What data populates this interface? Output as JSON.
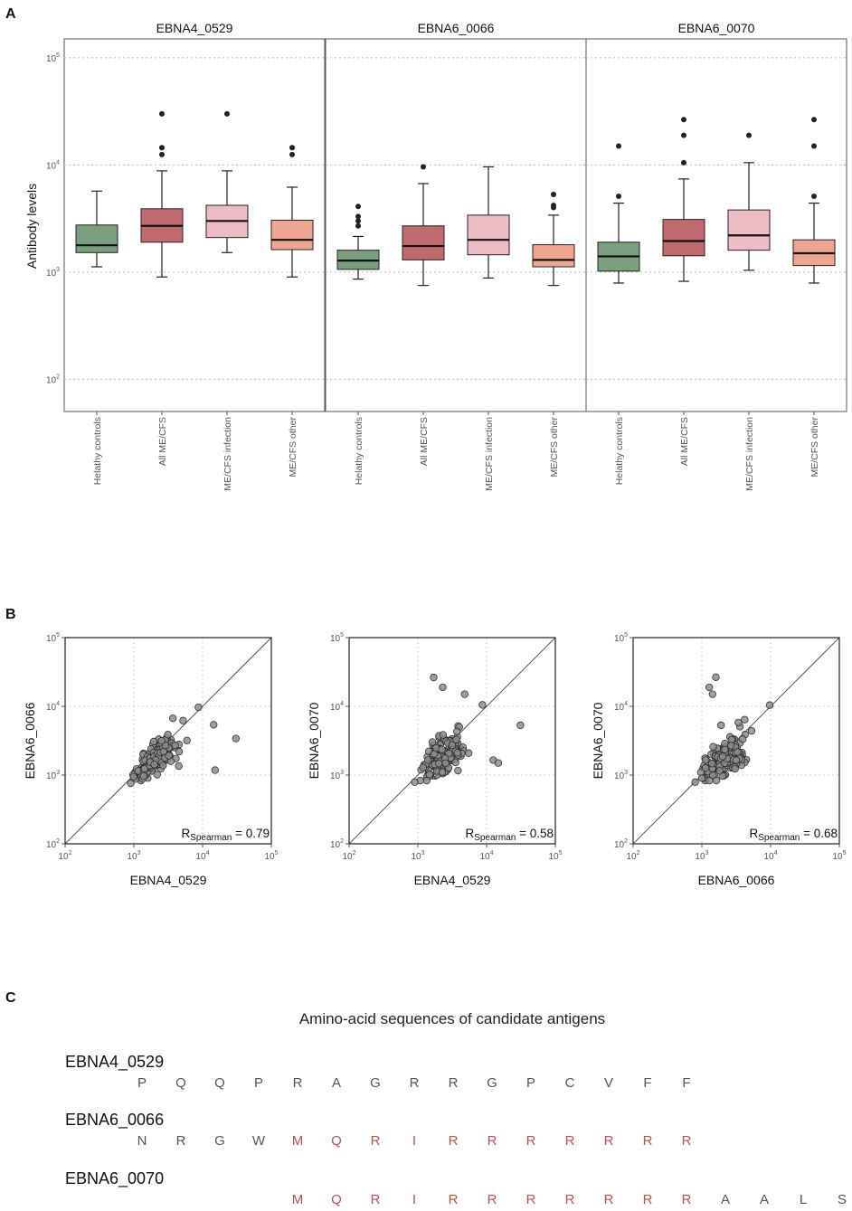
{
  "panels": {
    "a": "A",
    "b": "B",
    "c": "C"
  },
  "chart_data": [
    {
      "type": "boxplot",
      "id": "A",
      "ylabel": "Antibody levels",
      "yscale": "log10",
      "ylim": [
        50,
        150000
      ],
      "yticks": [
        {
          "value": 100,
          "base": "10",
          "exp": "2"
        },
        {
          "value": 1000,
          "base": "10",
          "exp": "3"
        },
        {
          "value": 10000,
          "base": "10",
          "exp": "4"
        },
        {
          "value": 100000,
          "base": "10",
          "exp": "5"
        }
      ],
      "groups": [
        "Helathy controls",
        "All ME/CFS",
        "ME/CFS infection",
        "ME/CFS other"
      ],
      "colors": [
        "#7a9e7e",
        "#c0696f",
        "#ebbcc4",
        "#eea692"
      ],
      "facets": [
        {
          "title": "EBNA4_0529",
          "boxes": [
            {
              "min": 1120,
              "q1": 1520,
              "median": 1780,
              "q3": 2750,
              "max": 5700,
              "outliers": []
            },
            {
              "min": 900,
              "q1": 1900,
              "median": 2700,
              "q3": 3900,
              "max": 8800,
              "outliers": [
                12500,
                14500,
                30000
              ]
            },
            {
              "min": 1520,
              "q1": 2100,
              "median": 3000,
              "q3": 4200,
              "max": 8800,
              "outliers": [
                30000
              ]
            },
            {
              "min": 900,
              "q1": 1620,
              "median": 2000,
              "q3": 3050,
              "max": 6200,
              "outliers": [
                12500,
                14500
              ]
            }
          ]
        },
        {
          "title": "EBNA6_0066",
          "boxes": [
            {
              "min": 860,
              "q1": 1060,
              "median": 1280,
              "q3": 1600,
              "max": 2150,
              "outliers": [
                2700,
                3000,
                3300,
                4100
              ]
            },
            {
              "min": 750,
              "q1": 1300,
              "median": 1750,
              "q3": 2700,
              "max": 6700,
              "outliers": [
                9600
              ]
            },
            {
              "min": 880,
              "q1": 1450,
              "median": 2000,
              "q3": 3400,
              "max": 9600,
              "outliers": []
            },
            {
              "min": 750,
              "q1": 1120,
              "median": 1300,
              "q3": 1800,
              "max": 3400,
              "outliers": [
                4000,
                4200,
                5300
              ]
            }
          ]
        },
        {
          "title": "EBNA6_0070",
          "boxes": [
            {
              "min": 790,
              "q1": 1020,
              "median": 1400,
              "q3": 1900,
              "max": 4400,
              "outliers": [
                5100,
                15000
              ]
            },
            {
              "min": 820,
              "q1": 1420,
              "median": 1950,
              "q3": 3100,
              "max": 7400,
              "outliers": [
                10500,
                18900,
                26500
              ]
            },
            {
              "min": 1040,
              "q1": 1600,
              "median": 2200,
              "q3": 3800,
              "max": 10500,
              "outliers": [
                18900
              ]
            },
            {
              "min": 790,
              "q1": 1150,
              "median": 1500,
              "q3": 2000,
              "max": 4400,
              "outliers": [
                5100,
                15000,
                26500
              ]
            }
          ]
        }
      ]
    },
    {
      "type": "scatter",
      "id": "B",
      "xscale": "log10",
      "yscale": "log10",
      "xlim": [
        100,
        100000
      ],
      "ylim": [
        100,
        100000
      ],
      "ticks": [
        {
          "value": 100,
          "base": "10",
          "exp": "2"
        },
        {
          "value": 1000,
          "base": "10",
          "exp": "3"
        },
        {
          "value": 10000,
          "base": "10",
          "exp": "4"
        },
        {
          "value": 100000,
          "base": "10",
          "exp": "5"
        }
      ],
      "plots": [
        {
          "xlabel": "EBNA4_0529",
          "ylabel": "EBNA6_0066",
          "r_prefix": "R",
          "r_sub": "Spearman",
          "r_text": "= 0.79",
          "r_value": 0.79,
          "outlier_points": [
            [
              30500,
              3400
            ],
            [
              15200,
              1180
            ],
            [
              14500,
              5400
            ],
            [
              8700,
              9700
            ],
            [
              5200,
              6200
            ],
            [
              3700,
              6700
            ],
            [
              4500,
              1350
            ],
            [
              900,
              760
            ]
          ]
        },
        {
          "xlabel": "EBNA4_0529",
          "ylabel": "EBNA6_0070",
          "r_prefix": "R",
          "r_sub": "Spearman",
          "r_text": "= 0.58",
          "r_value": 0.58,
          "outlier_points": [
            [
              1700,
              26300
            ],
            [
              2300,
              18900
            ],
            [
              4800,
              15000
            ],
            [
              31000,
              5300
            ],
            [
              12500,
              1650
            ],
            [
              14800,
              1500
            ],
            [
              8700,
              10500
            ],
            [
              4000,
              5000
            ],
            [
              900,
              790
            ],
            [
              3700,
              4300
            ]
          ]
        },
        {
          "xlabel": "EBNA6_0066",
          "ylabel": "EBNA6_0070",
          "r_prefix": "R",
          "r_sub": "Spearman",
          "r_text": "= 0.68",
          "r_value": 0.68,
          "outlier_points": [
            [
              1600,
              26500
            ],
            [
              1280,
              18900
            ],
            [
              1430,
              15000
            ],
            [
              9700,
              10400
            ],
            [
              1900,
              5300
            ],
            [
              5300,
              4400
            ],
            [
              3400,
              5800
            ],
            [
              4200,
              6400
            ],
            [
              800,
              790
            ],
            [
              1000,
              900
            ]
          ]
        }
      ]
    }
  ],
  "sequences": {
    "title": "Amino-acid sequences of candidate antigens",
    "normal_color": "#555555",
    "highlight_color": "#c0504d",
    "rows": [
      {
        "name": "EBNA4_0529",
        "offset": 0,
        "letters": [
          "P",
          "Q",
          "Q",
          "P",
          "R",
          "A",
          "G",
          "R",
          "R",
          "G",
          "P",
          "C",
          "V",
          "F",
          "F"
        ],
        "highlight": [
          false,
          false,
          false,
          false,
          false,
          false,
          false,
          false,
          false,
          false,
          false,
          false,
          false,
          false,
          false
        ]
      },
      {
        "name": "EBNA6_0066",
        "offset": 0,
        "letters": [
          "N",
          "R",
          "G",
          "W",
          "M",
          "Q",
          "R",
          "I",
          "R",
          "R",
          "R",
          "R",
          "R",
          "R",
          "R"
        ],
        "highlight": [
          false,
          false,
          false,
          false,
          true,
          true,
          true,
          true,
          true,
          true,
          true,
          true,
          true,
          true,
          true
        ]
      },
      {
        "name": "EBNA6_0070",
        "offset": 4,
        "letters": [
          "M",
          "Q",
          "R",
          "I",
          "R",
          "R",
          "R",
          "R",
          "R",
          "R",
          "R",
          "A",
          "A",
          "L",
          "S"
        ],
        "highlight": [
          true,
          true,
          true,
          true,
          true,
          true,
          true,
          true,
          true,
          true,
          true,
          false,
          false,
          false,
          false
        ]
      }
    ]
  }
}
